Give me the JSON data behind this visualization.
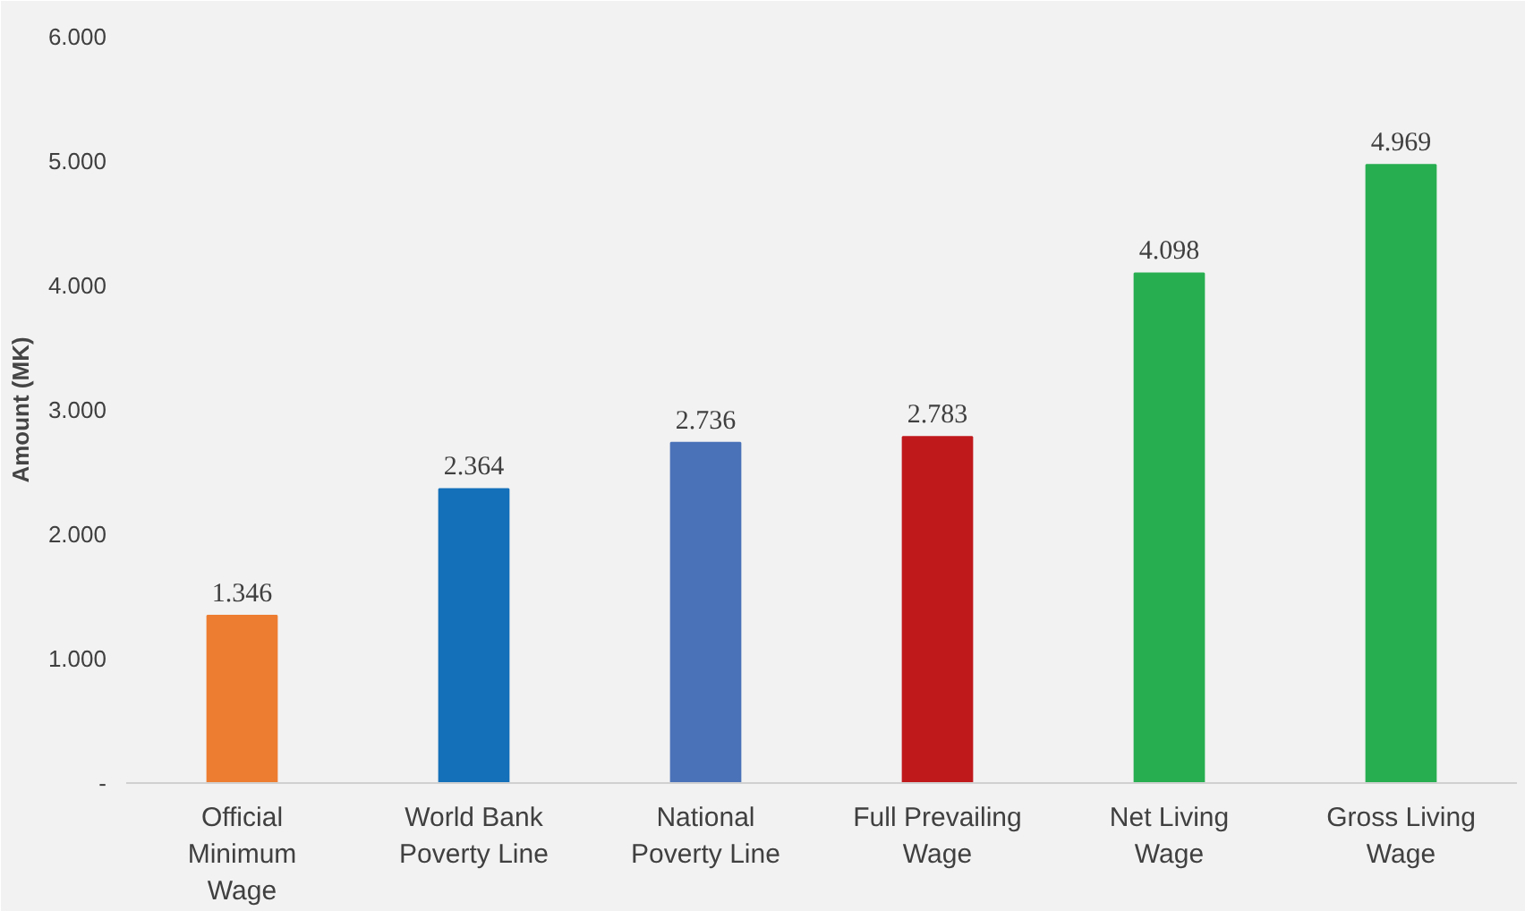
{
  "chart_data": {
    "type": "bar",
    "ylabel": "Amount (MK)",
    "categories": [
      "Official\nMinimum\nWage",
      "World Bank\nPoverty Line",
      "National\nPoverty Line",
      "Full Prevailing\nWage",
      "Net Living\nWage",
      "Gross Living\nWage"
    ],
    "values": [
      1346,
      2364,
      2736,
      2783,
      4098,
      4969
    ],
    "value_labels": [
      "1.346",
      "2.364",
      "2.736",
      "2.783",
      "4.098",
      "4.969"
    ],
    "colors": [
      "#ed7d31",
      "#1470b9",
      "#4a72b8",
      "#c0191c",
      "#27ae50",
      "#27ae50"
    ],
    "ylim": [
      0,
      6000
    ],
    "yticks": [
      {
        "value": 0,
        "label": "-"
      },
      {
        "value": 1000,
        "label": "1.000"
      },
      {
        "value": 2000,
        "label": "2.000"
      },
      {
        "value": 3000,
        "label": "3.000"
      },
      {
        "value": 4000,
        "label": "4.000"
      },
      {
        "value": 5000,
        "label": "5.000"
      },
      {
        "value": 6000,
        "label": "6.000"
      }
    ],
    "grid": false
  }
}
